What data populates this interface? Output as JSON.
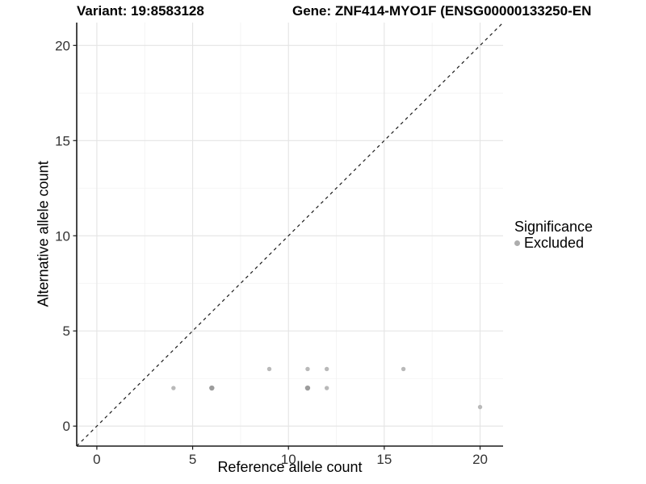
{
  "title": {
    "variant": "Variant: 19:8583128",
    "gene": "Gene: ZNF414-MYO1F (ENSG00000133250-EN"
  },
  "chart_data": {
    "type": "scatter",
    "xlabel": "Reference allele count",
    "ylabel": "Alternative allele count",
    "xlim": [
      -1.05,
      21.2
    ],
    "ylim": [
      -1.05,
      21.2
    ],
    "xticks": [
      0,
      5,
      10,
      15,
      20
    ],
    "yticks": [
      0,
      5,
      10,
      15,
      20
    ],
    "minor_ticks": [
      2.5,
      7.5,
      12.5,
      17.5
    ],
    "grid": true,
    "identity_line": {
      "slope": 1,
      "intercept": 0,
      "style": "dashed",
      "color": "#1c1c1c"
    },
    "points": [
      {
        "x": 4,
        "y": 2,
        "overlap": false
      },
      {
        "x": 6,
        "y": 2,
        "overlap": true
      },
      {
        "x": 9,
        "y": 3,
        "overlap": false
      },
      {
        "x": 11,
        "y": 2,
        "overlap": true
      },
      {
        "x": 11,
        "y": 3,
        "overlap": false
      },
      {
        "x": 12,
        "y": 2,
        "overlap": false
      },
      {
        "x": 12,
        "y": 3,
        "overlap": false
      },
      {
        "x": 16,
        "y": 3,
        "overlap": false
      },
      {
        "x": 20,
        "y": 1,
        "overlap": false
      }
    ],
    "colors": {
      "point": "#b9b9b9",
      "point_overlap": "#9c9c9c",
      "grid_major": "#e4e4e4",
      "grid_minor": "#f2f2f2",
      "axis_line": "#1a1a1a",
      "tick_label": "#333333"
    },
    "legend": {
      "title": "Significance",
      "position": "right",
      "items": [
        {
          "label": "Excluded",
          "color": "#adadad"
        }
      ]
    }
  }
}
